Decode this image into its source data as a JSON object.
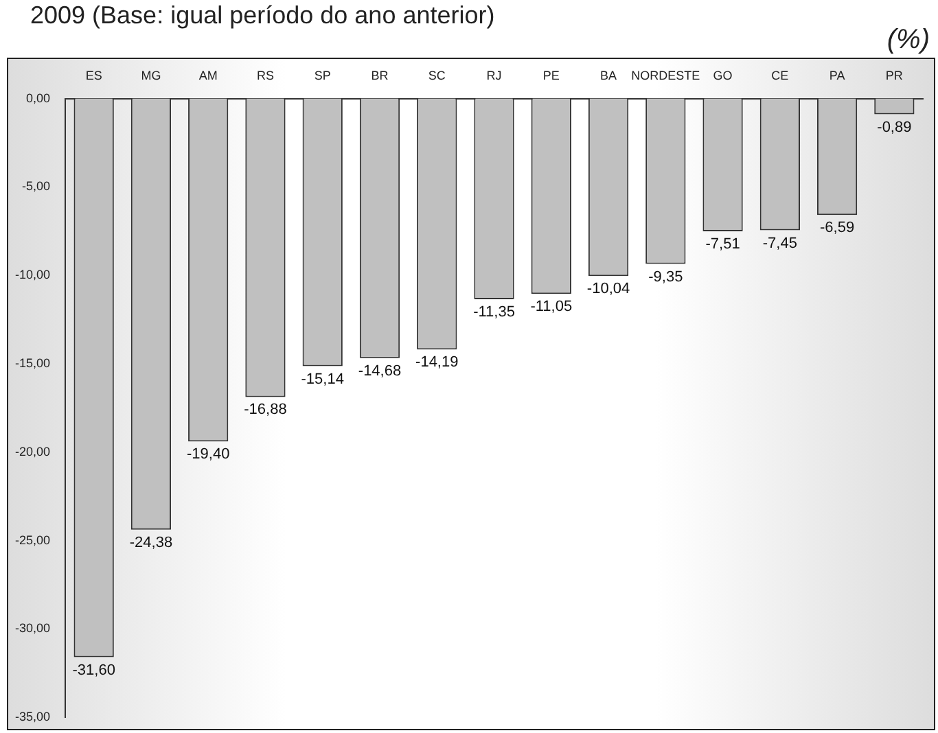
{
  "chart_data": {
    "type": "bar",
    "title": "2009 (Base: igual período do ano anterior)",
    "ylabel": "(%)",
    "categories": [
      "ES",
      "MG",
      "AM",
      "RS",
      "SP",
      "BR",
      "SC",
      "RJ",
      "PE",
      "BA",
      "NORDESTE",
      "GO",
      "CE",
      "PA",
      "PR"
    ],
    "values": [
      -31.6,
      -24.38,
      -19.4,
      -16.88,
      -15.14,
      -14.68,
      -14.19,
      -11.35,
      -11.05,
      -10.04,
      -9.35,
      -7.51,
      -7.45,
      -6.59,
      -0.89
    ],
    "value_labels": [
      "-31,60",
      "-24,38",
      "-19,40",
      "-16,88",
      "-15,14",
      "-14,68",
      "-14,19",
      "-11,35",
      "-11,05",
      "-10,04",
      "-9,35",
      "-7,51",
      "-7,45",
      "-6,59",
      "-0,89"
    ],
    "color": "#c0c0c0",
    "ylim": [
      -35,
      0
    ],
    "yticks": [
      {
        "value": 0,
        "label": "0,00"
      },
      {
        "value": -5,
        "label": "-5,00"
      },
      {
        "value": -10,
        "label": "-10,00"
      },
      {
        "value": -15,
        "label": "-15,00"
      },
      {
        "value": -20,
        "label": "-20,00"
      },
      {
        "value": -25,
        "label": "-25,00"
      },
      {
        "value": -30,
        "label": "-30,00"
      },
      {
        "value": -35,
        "label": "-35,00"
      }
    ],
    "grid": false,
    "legend": false
  }
}
